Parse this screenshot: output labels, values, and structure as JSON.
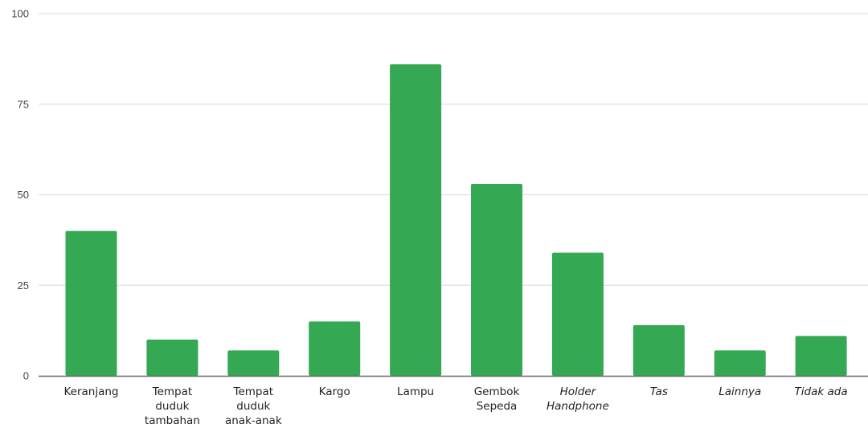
{
  "chart_data": {
    "type": "bar",
    "title": "",
    "xlabel": "",
    "ylabel": "",
    "ylim": [
      0,
      100
    ],
    "yticks": [
      0,
      25,
      50,
      75,
      100
    ],
    "grid": true,
    "legend": "none",
    "bar_color": "#34a853",
    "grid_color": "#e0e0e0",
    "axis_color": "#666666",
    "categories": [
      {
        "lines": [
          "Keranjang"
        ],
        "italic": false
      },
      {
        "lines": [
          "Tempat",
          "duduk",
          "tambahan"
        ],
        "italic": false
      },
      {
        "lines": [
          "Tempat",
          "duduk",
          "anak-anak"
        ],
        "italic": false
      },
      {
        "lines": [
          "Kargo"
        ],
        "italic": false
      },
      {
        "lines": [
          "Lampu"
        ],
        "italic": false
      },
      {
        "lines": [
          "Gembok",
          "Sepeda"
        ],
        "italic": false
      },
      {
        "lines": [
          "Holder",
          "Handphone"
        ],
        "italic": true
      },
      {
        "lines": [
          "Tas"
        ],
        "italic": true
      },
      {
        "lines": [
          "Lainnya"
        ],
        "italic": true
      },
      {
        "lines": [
          "Tidak ada"
        ],
        "italic": true
      }
    ],
    "values": [
      40,
      10,
      7,
      15,
      86,
      53,
      34,
      14,
      7,
      11
    ]
  }
}
